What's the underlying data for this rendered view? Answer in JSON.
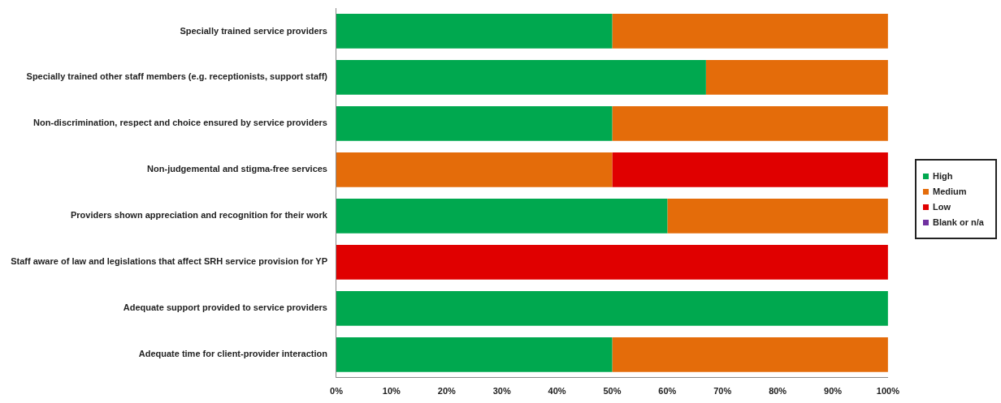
{
  "chart_data": {
    "type": "bar",
    "orientation": "horizontal",
    "stacked": true,
    "legend": "right",
    "categories": [
      "Specially trained service providers",
      "Specially trained other staff members (e.g. receptionists, support staff)",
      "Non-discrimination, respect and choice ensured by service providers",
      "Non-judgemental and stigma-free services",
      "Providers shown appreciation and recognition for their work",
      "Staff aware of law and legislations that affect SRH service provision for YP",
      "Adequate support provided to service providers",
      "Adequate time for client-provider interaction"
    ],
    "series": [
      {
        "name": "High",
        "color": "#00a84f",
        "values": [
          50,
          67,
          50,
          0,
          60,
          0,
          100,
          50
        ]
      },
      {
        "name": "Medium",
        "color": "#e46c0a",
        "values": [
          50,
          33,
          50,
          50,
          40,
          0,
          0,
          50
        ]
      },
      {
        "name": "Low",
        "color": "#e00000",
        "values": [
          0,
          0,
          0,
          50,
          0,
          100,
          0,
          0
        ]
      },
      {
        "name": "Blank or n/a",
        "color": "#7030a0",
        "values": [
          0,
          0,
          0,
          0,
          0,
          0,
          0,
          0
        ]
      }
    ],
    "xlim": [
      0,
      100
    ],
    "xticks": [
      {
        "value": 0,
        "label": "0%"
      },
      {
        "value": 10,
        "label": "10%"
      },
      {
        "value": 20,
        "label": "20%"
      },
      {
        "value": 30,
        "label": "30%"
      },
      {
        "value": 40,
        "label": "40%"
      },
      {
        "value": 50,
        "label": "50%"
      },
      {
        "value": 60,
        "label": "60%"
      },
      {
        "value": 70,
        "label": "70%"
      },
      {
        "value": 80,
        "label": "80%"
      },
      {
        "value": 90,
        "label": "90%"
      },
      {
        "value": 100,
        "label": "100%"
      }
    ],
    "grid": false
  }
}
